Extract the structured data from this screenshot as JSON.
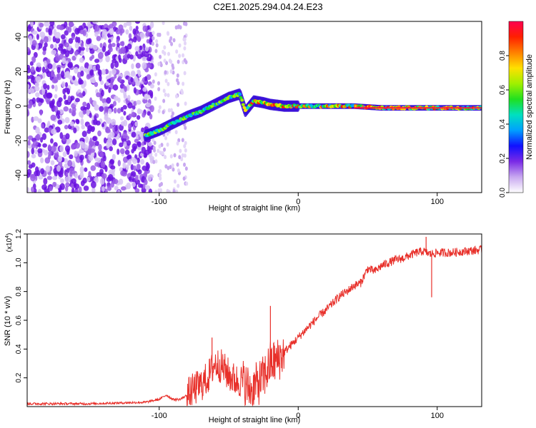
{
  "page_title": "C2E1.2025.294.04.24.E23",
  "chart_data": [
    {
      "type": "heatmap",
      "title": "C2E1.2025.294.04.24.E23",
      "xlabel": "Height of straight line (km)",
      "ylabel": "Frequency (Hz)",
      "xlim": [
        -195,
        132
      ],
      "ylim": [
        -50,
        49
      ],
      "xticks": [
        -100,
        0,
        100
      ],
      "yticks": [
        -40,
        -20,
        0,
        20,
        40
      ],
      "colorbar": {
        "label": "Normalized spectral amplitude",
        "range": [
          0,
          1
        ],
        "ticks": [
          0.0,
          0.2,
          0.4,
          0.6,
          0.8
        ],
        "colormap": [
          "#ffffff",
          "#c8a8f0",
          "#7a2ae6",
          "#1010ff",
          "#00a0ff",
          "#00e0c0",
          "#20e020",
          "#a0f000",
          "#ffe000",
          "#ff8000",
          "#ff2000",
          "#ff0050"
        ]
      },
      "ridge": {
        "description": "dominant frequency track",
        "x": [
          -110,
          -100,
          -90,
          -80,
          -70,
          -60,
          -50,
          -42,
          -38,
          -32,
          -25,
          -20,
          -10,
          0,
          20,
          40,
          60,
          80,
          100,
          132
        ],
        "frequency": [
          -17,
          -14,
          -10,
          -6,
          -3,
          1,
          5,
          7,
          -3,
          3,
          2,
          1,
          0,
          0,
          0,
          0,
          -1,
          -1,
          -1,
          -1
        ]
      },
      "noise_region_x": [
        -195,
        -105
      ]
    },
    {
      "type": "line",
      "xlabel": "Height of straight line (km)",
      "ylabel": "SNR (10 * v/v)",
      "multiplier": "(x10",
      "multiplier_exp": "4",
      "xlim": [
        -195,
        132
      ],
      "ylim": [
        0,
        1.2
      ],
      "xticks": [
        -100,
        0,
        100
      ],
      "yticks": [
        0.2,
        0.4,
        0.6,
        0.8,
        1.0,
        1.2
      ],
      "series": [
        {
          "name": "SNR",
          "color": "#e8302a",
          "x": [
            -195,
            -150,
            -110,
            -100,
            -95,
            -90,
            -85,
            -80,
            -75,
            -70,
            -65,
            -60,
            -55,
            -50,
            -45,
            -40,
            -35,
            -30,
            -25,
            -20,
            -15,
            -10,
            -5,
            0,
            5,
            10,
            15,
            20,
            25,
            30,
            35,
            40,
            45,
            50,
            55,
            60,
            65,
            70,
            75,
            80,
            85,
            90,
            95,
            100,
            110,
            120,
            132
          ],
          "values": [
            0.02,
            0.02,
            0.03,
            0.05,
            0.08,
            0.05,
            0.05,
            0.08,
            0.12,
            0.15,
            0.2,
            0.3,
            0.28,
            0.22,
            0.18,
            0.18,
            0.12,
            0.15,
            0.2,
            0.3,
            0.32,
            0.38,
            0.43,
            0.48,
            0.53,
            0.58,
            0.63,
            0.67,
            0.72,
            0.77,
            0.8,
            0.84,
            0.86,
            0.96,
            0.94,
            0.98,
            1.0,
            1.02,
            1.03,
            1.05,
            1.07,
            1.08,
            1.06,
            1.07,
            1.07,
            1.08,
            1.09
          ]
        }
      ],
      "annotations": [
        {
          "x": -62,
          "peak": 0.48
        },
        {
          "x": -20,
          "peak": 0.7
        },
        {
          "x": 92,
          "peak": 1.18
        },
        {
          "x": 96,
          "dip": 0.76
        }
      ]
    }
  ]
}
